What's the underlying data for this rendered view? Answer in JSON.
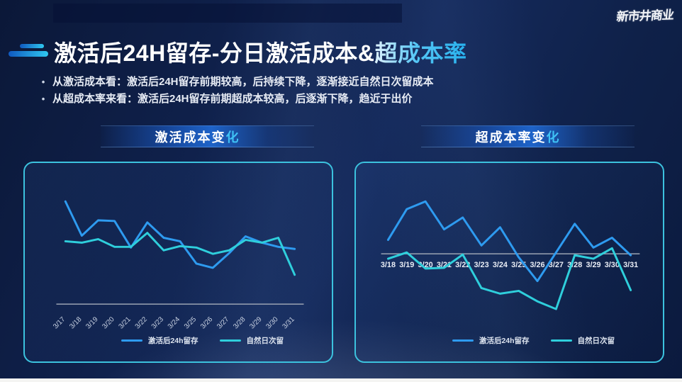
{
  "logo": {
    "text": "新市井商业"
  },
  "title": {
    "main": "激活后24H留存-分日激活成本&",
    "accent": "超成本率"
  },
  "bullets": [
    {
      "text": "从激活成本看：激活后24H留存前期较高，后持续下降，逐渐接近自然日次留成本"
    },
    {
      "text": "从超成本率来看：激活后24H留存前期超成本较高，后逐渐下降，趋近于出价"
    }
  ],
  "panels": [
    {
      "header_main": "激活成本变",
      "header_accent": "化"
    },
    {
      "header_main": "超成本率变",
      "header_accent": "化"
    }
  ],
  "colors": {
    "background": "#0f2149",
    "panel_border": "#3cc2de",
    "banner_blue": "#1e63c8",
    "series_blue": "#2e9bf0",
    "series_cyan": "#2fcfdc",
    "axis_line": "#9aa3b2",
    "title_accent": "#27b2ef"
  },
  "chart_data": [
    {
      "type": "line",
      "title": "激活成本变化",
      "x": [
        "3/17",
        "3/18",
        "3/19",
        "3/20",
        "3/21",
        "3/22",
        "3/23",
        "3/24",
        "3/25",
        "3/26",
        "3/27",
        "3/28",
        "3/29",
        "3/30",
        "3/31"
      ],
      "series": [
        {
          "name": "激活后24h留存",
          "color": "#2e9bf0",
          "values": [
            14.7,
            9.8,
            12.0,
            11.9,
            8.1,
            11.7,
            9.5,
            9.0,
            5.8,
            5.2,
            7.3,
            9.7,
            8.8,
            8.2,
            7.9
          ]
        },
        {
          "name": "自然日次留",
          "color": "#2fcfdc",
          "values": [
            9.0,
            8.8,
            9.3,
            8.2,
            8.2,
            10.2,
            7.7,
            8.3,
            8.1,
            7.2,
            7.7,
            9.2,
            8.8,
            9.5,
            4.2
          ]
        }
      ],
      "xlabel": "",
      "ylabel": "",
      "ylim": [
        0,
        17
      ],
      "grid": false,
      "legend_position": "bottom",
      "x_label_rotation": -45,
      "axis_line_at": 0
    },
    {
      "type": "line",
      "title": "超成本率变化",
      "x": [
        "3/18",
        "3/19",
        "3/20",
        "3/21",
        "3/22",
        "3/23",
        "3/24",
        "3/25",
        "3/26",
        "3/27",
        "3/28",
        "3/29",
        "3/30",
        "3/31"
      ],
      "series": [
        {
          "name": "激活后24h留存",
          "color": "#2e9bf0",
          "values": [
            2.0,
            6.4,
            7.5,
            3.5,
            5.2,
            1.2,
            3.8,
            -0.5,
            -3.9,
            0.2,
            4.3,
            0.9,
            2.3,
            -0.2
          ]
        },
        {
          "name": "自然日次留",
          "color": "#2fcfdc",
          "values": [
            -0.7,
            0.2,
            -2.1,
            -2.0,
            -0.1,
            -4.9,
            -5.7,
            -5.3,
            -6.8,
            -7.9,
            -0.2,
            -0.7,
            0.8,
            -5.2
          ]
        }
      ],
      "xlabel": "",
      "ylabel": "",
      "ylim": [
        -9,
        8
      ],
      "grid": false,
      "legend_position": "bottom",
      "x_label_rotation": 0,
      "axis_line_at": 0
    }
  ]
}
